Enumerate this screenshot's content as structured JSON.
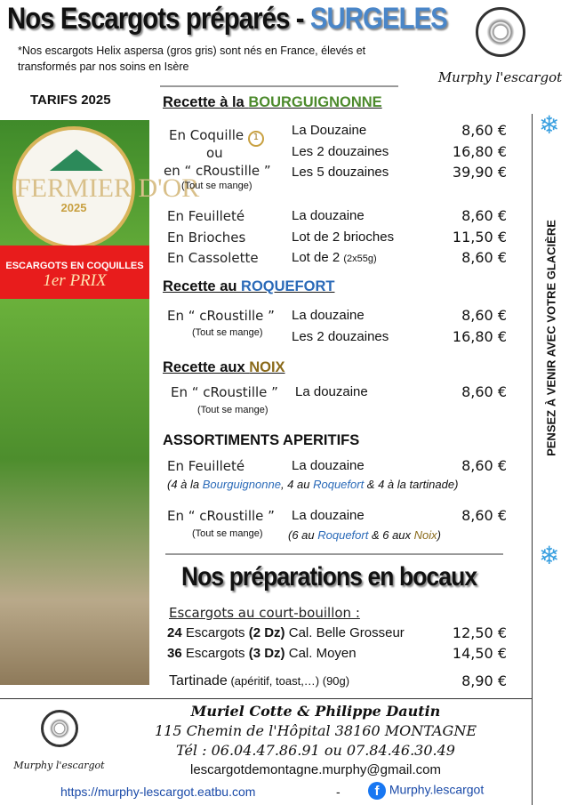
{
  "header": {
    "title": "Nos Escargots préparés - ",
    "title_accent": "SURGELES",
    "note": "*Nos escargots Helix aspersa (gros gris) sont nés en France, élevés et transformés par nos soins en Isère",
    "tarifs": "TARIFS 2025",
    "logo_text": "Murphy l'escargot"
  },
  "award": {
    "medal_title": "FERMIER D'OR",
    "medal_year": "2025",
    "medal_ring": "Chambre d'Agriculture Auvergne-Rhône-Alpes · Concours régional de produits fermiers",
    "category": "ESCARGOTS EN COQUILLES",
    "prize": "1er PRIX"
  },
  "side": {
    "text": "PENSEZ À VENIR AVEC VOTRE GLACIÈRE"
  },
  "bourguignonne": {
    "heading": "Recette à la ",
    "heading_accent": "BOURGUIGNONNE",
    "coquille_a": "En Coquille",
    "ou": "ou",
    "coquille_b": "en “ cRoustille ”",
    "tout": "(Tout se mange)",
    "rows": [
      {
        "item": "La Douzaine",
        "price": "8,60 €"
      },
      {
        "item": "Les 2 douzaines",
        "price": "16,80 €"
      },
      {
        "item": "Les 5 douzaines",
        "price": "39,90 €"
      },
      {
        "label": "En Feuilleté",
        "item": "La douzaine",
        "price": "8,60 €"
      },
      {
        "label": "En Brioches",
        "item": "Lot de 2 brioches",
        "price": "11,50 €"
      },
      {
        "label": "En Cassolette",
        "item": "Lot de 2",
        "item_small": "(2x55g)",
        "price": "8,60 €"
      }
    ]
  },
  "roquefort": {
    "heading": "Recette au ",
    "heading_accent": "ROQUEFORT",
    "label": "En “ cRoustille ”",
    "tout": "(Tout se mange)",
    "rows": [
      {
        "item": "La douzaine",
        "price": "8,60 €"
      },
      {
        "item": "Les 2 douzaines",
        "price": "16,80 €"
      }
    ]
  },
  "noix": {
    "heading": "Recette aux ",
    "heading_accent": "NOIX",
    "label": "En “ cRoustille ”",
    "tout": "(Tout se mange)",
    "item": "La douzaine",
    "price": "8,60 €"
  },
  "assortiments": {
    "heading": "ASSORTIMENTS APERITIFS",
    "a": {
      "label": "En Feuilleté",
      "item": "La douzaine",
      "price": "8,60 €",
      "d1": "(4 à la ",
      "d2": "Bourguignonne",
      "d3": ", 4 au ",
      "d4": "Roquefort",
      "d5": " & 4 à la tartinade)"
    },
    "b": {
      "label": "En “ cRoustille ”",
      "tout": "(Tout se mange)",
      "item": "La douzaine",
      "price": "8,60 €",
      "d1": "(6 au ",
      "d2": "Roquefort",
      "d3": " & 6 aux ",
      "d4": "Noix",
      "d5": ")"
    }
  },
  "bocaux": {
    "heading": "Nos préparations en bocaux",
    "sub": "Escargots au court-bouillon :",
    "rows": [
      {
        "qty": "24",
        "txt": " Escargots ",
        "dz": "(2 Dz)",
        "cal": " Cal. Belle Grosseur",
        "price": "12,50 €"
      },
      {
        "qty": "36",
        "txt": " Escargots ",
        "dz": "(3 Dz)",
        "cal": " Cal. Moyen",
        "price": "14,50 €"
      }
    ],
    "tartinade": "Tartinade",
    "tartinade_desc": " (apéritif, toast,…) (90g)",
    "tartinade_price": "8,90 €"
  },
  "footer": {
    "names": "Muriel Cotte & Philippe Dautin",
    "address": "115 Chemin de l'Hôpital 38160 MONTAGNE",
    "tel": "Tél : 06.04.47.86.91 ou 07.84.46.30.49",
    "email": "lescargotdemontagne.murphy@gmail.com",
    "website": "https://murphy-lescargot.eatbu.com",
    "dash": "-",
    "facebook": "Murphy.lescargot",
    "logo_text": "Murphy l'escargot"
  }
}
